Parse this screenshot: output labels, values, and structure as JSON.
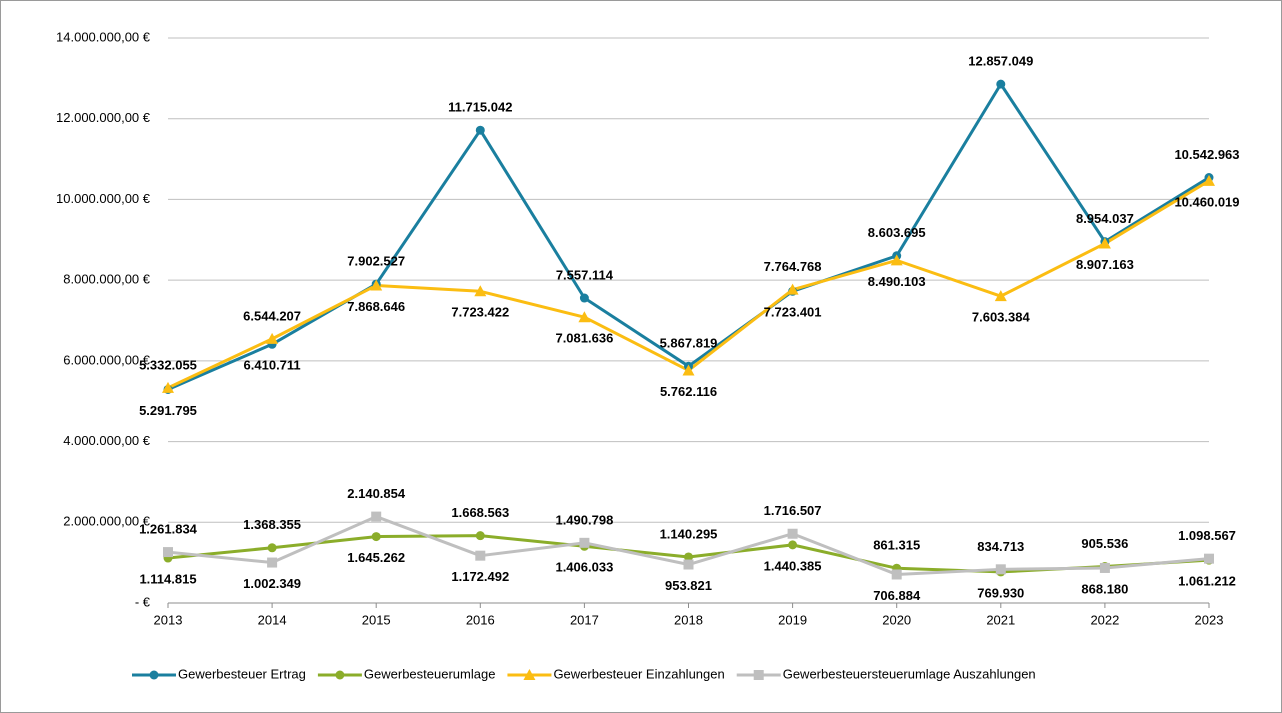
{
  "chart_data": {
    "type": "line",
    "categories": [
      "2013",
      "2014",
      "2015",
      "2016",
      "2017",
      "2018",
      "2019",
      "2020",
      "2021",
      "2022",
      "2023"
    ],
    "ylim": [
      0,
      14000000
    ],
    "yticks": [
      {
        "value": 0,
        "label": "-   €"
      },
      {
        "value": 2000000,
        "label": "2.000.000,00 €"
      },
      {
        "value": 4000000,
        "label": "4.000.000,00 €"
      },
      {
        "value": 6000000,
        "label": "6.000.000,00 €"
      },
      {
        "value": 8000000,
        "label": "8.000.000,00 €"
      },
      {
        "value": 10000000,
        "label": "10.000.000,00 €"
      },
      {
        "value": 12000000,
        "label": "12.000.000,00 €"
      },
      {
        "value": 14000000,
        "label": "14.000.000,00 €"
      }
    ],
    "grid": true,
    "legend": "bottom",
    "series": [
      {
        "name": "Gewerbesteuer Ertrag",
        "color": "#1a7f9f",
        "label_color": "#4bacc6",
        "marker": "circle",
        "values": [
          5291795,
          6410711,
          7902527,
          11715042,
          7557114,
          5867819,
          7723401,
          8603695,
          12857049,
          8954037,
          10542963
        ],
        "value_labels": [
          "5.291.795",
          "6.410.711",
          "7.902.527",
          "11.715.042",
          "7.557.114",
          "5.867.819",
          "7.723.401",
          "8.603.695",
          "12.857.049",
          "8.954.037",
          "10.542.963"
        ]
      },
      {
        "name": "Gewerbesteuerumlage",
        "color": "#8bad2a",
        "label_color": "#a9c22b",
        "marker": "circle",
        "values": [
          1114815,
          1368355,
          1645262,
          1668563,
          1406033,
          1140295,
          1440385,
          861315,
          769930,
          905536,
          1061212
        ],
        "value_labels": [
          "1.114.815",
          "1.368.355",
          "1.645.262",
          "1.668.563",
          "1.406.033",
          "1.140.295",
          "1.440.385",
          "861.315",
          "769.930",
          "905.536",
          "1.061.212"
        ]
      },
      {
        "name": "Gewerbesteuer Einzahlungen",
        "color": "#fbbd12",
        "label_color": "#f0b400",
        "marker": "triangle",
        "values": [
          5332055,
          6544207,
          7868646,
          7723422,
          7081636,
          5762116,
          7764768,
          8490103,
          7603384,
          8907163,
          10460019
        ],
        "value_labels": [
          "5.332.055",
          "6.544.207",
          "7.868.646",
          "7.723.422",
          "7.081.636",
          "5.762.116",
          "7.764.768",
          "8.490.103",
          "7.603.384",
          "8.907.163",
          "10.460.019"
        ]
      },
      {
        "name": "Gewerbesteuersteuerumlage Auszahlungen",
        "color": "#bfbfbf",
        "label_color": "#a6a6a6",
        "marker": "square",
        "values": [
          1261834,
          1002349,
          2140854,
          1172492,
          1490798,
          953821,
          1716507,
          706884,
          834713,
          868180,
          1098567
        ],
        "value_labels": [
          "1.261.834",
          "1.002.349",
          "2.140.854",
          "1.172.492",
          "1.490.798",
          "953.821",
          "1.716.507",
          "706.884",
          "834.713",
          "868.180",
          "1.098.567"
        ]
      }
    ]
  }
}
